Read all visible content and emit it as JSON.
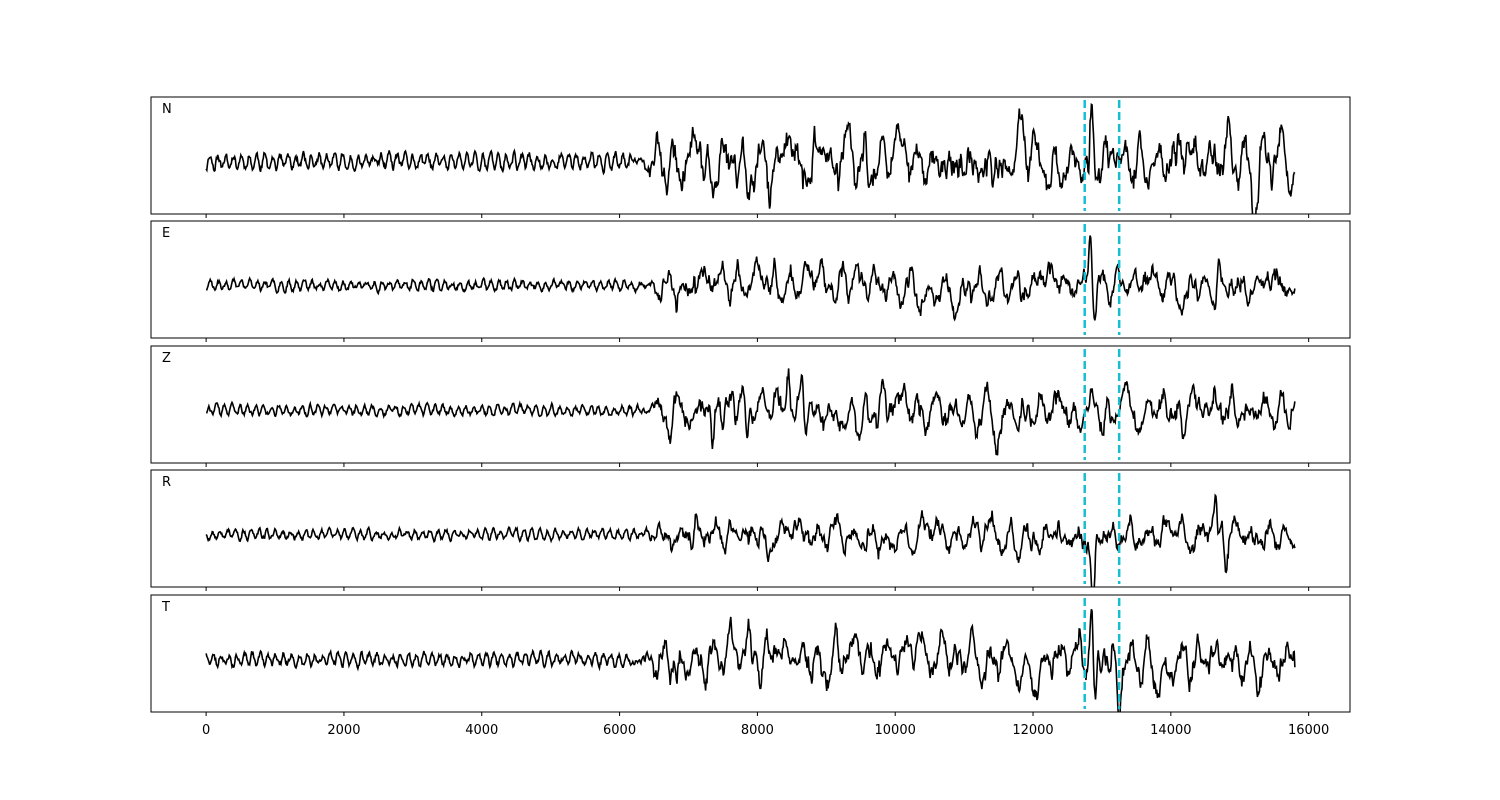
{
  "chart_data": {
    "type": "line",
    "title": "",
    "xlabel": "",
    "ylabel": "",
    "xlim": [
      -800,
      16600
    ],
    "x_ticks": [
      0,
      2000,
      4000,
      6000,
      8000,
      10000,
      12000,
      14000,
      16000
    ],
    "x_tick_labels": [
      "0",
      "2000",
      "4000",
      "6000",
      "8000",
      "10000",
      "12000",
      "14000",
      "16000"
    ],
    "n_samples": 15800,
    "markers": {
      "style": "dashed",
      "color": "#17becf",
      "x": [
        12750,
        13250
      ]
    },
    "line_color": "#000000",
    "grid": false,
    "legend": "none",
    "panels": [
      {
        "label": "N",
        "onset": 6200,
        "noise_amp": 0.18,
        "signal_amp": 0.75,
        "seed": 11,
        "events": [
          {
            "x": 12850,
            "amp": 1.0
          },
          {
            "x": 12800,
            "amp": -0.55
          },
          {
            "x": 15200,
            "amp": -0.75
          }
        ]
      },
      {
        "label": "E",
        "onset": 6300,
        "noise_amp": 0.12,
        "signal_amp": 0.5,
        "seed": 23,
        "events": [
          {
            "x": 12830,
            "amp": 1.05
          },
          {
            "x": 12900,
            "amp": -0.55
          },
          {
            "x": 8250,
            "amp": 0.45
          },
          {
            "x": 14700,
            "amp": 0.45
          },
          {
            "x": 14650,
            "amp": -0.45
          }
        ]
      },
      {
        "label": "Z",
        "onset": 6300,
        "noise_amp": 0.12,
        "signal_amp": 0.55,
        "seed": 37,
        "events": [
          {
            "x": 7350,
            "amp": -0.85
          },
          {
            "x": 8650,
            "amp": 0.85
          },
          {
            "x": 8450,
            "amp": 0.55
          },
          {
            "x": 7850,
            "amp": -0.45
          }
        ]
      },
      {
        "label": "R",
        "onset": 6300,
        "noise_amp": 0.12,
        "signal_amp": 0.45,
        "seed": 53,
        "events": [
          {
            "x": 12870,
            "amp": -1.1
          },
          {
            "x": 14650,
            "amp": 0.55
          },
          {
            "x": 8150,
            "amp": -0.45
          },
          {
            "x": 14800,
            "amp": -0.55
          }
        ]
      },
      {
        "label": "T",
        "onset": 6200,
        "noise_amp": 0.15,
        "signal_amp": 0.6,
        "seed": 71,
        "events": [
          {
            "x": 12850,
            "amp": 1.0
          },
          {
            "x": 12900,
            "amp": -0.9
          },
          {
            "x": 13250,
            "amp": -0.55
          }
        ]
      }
    ]
  }
}
